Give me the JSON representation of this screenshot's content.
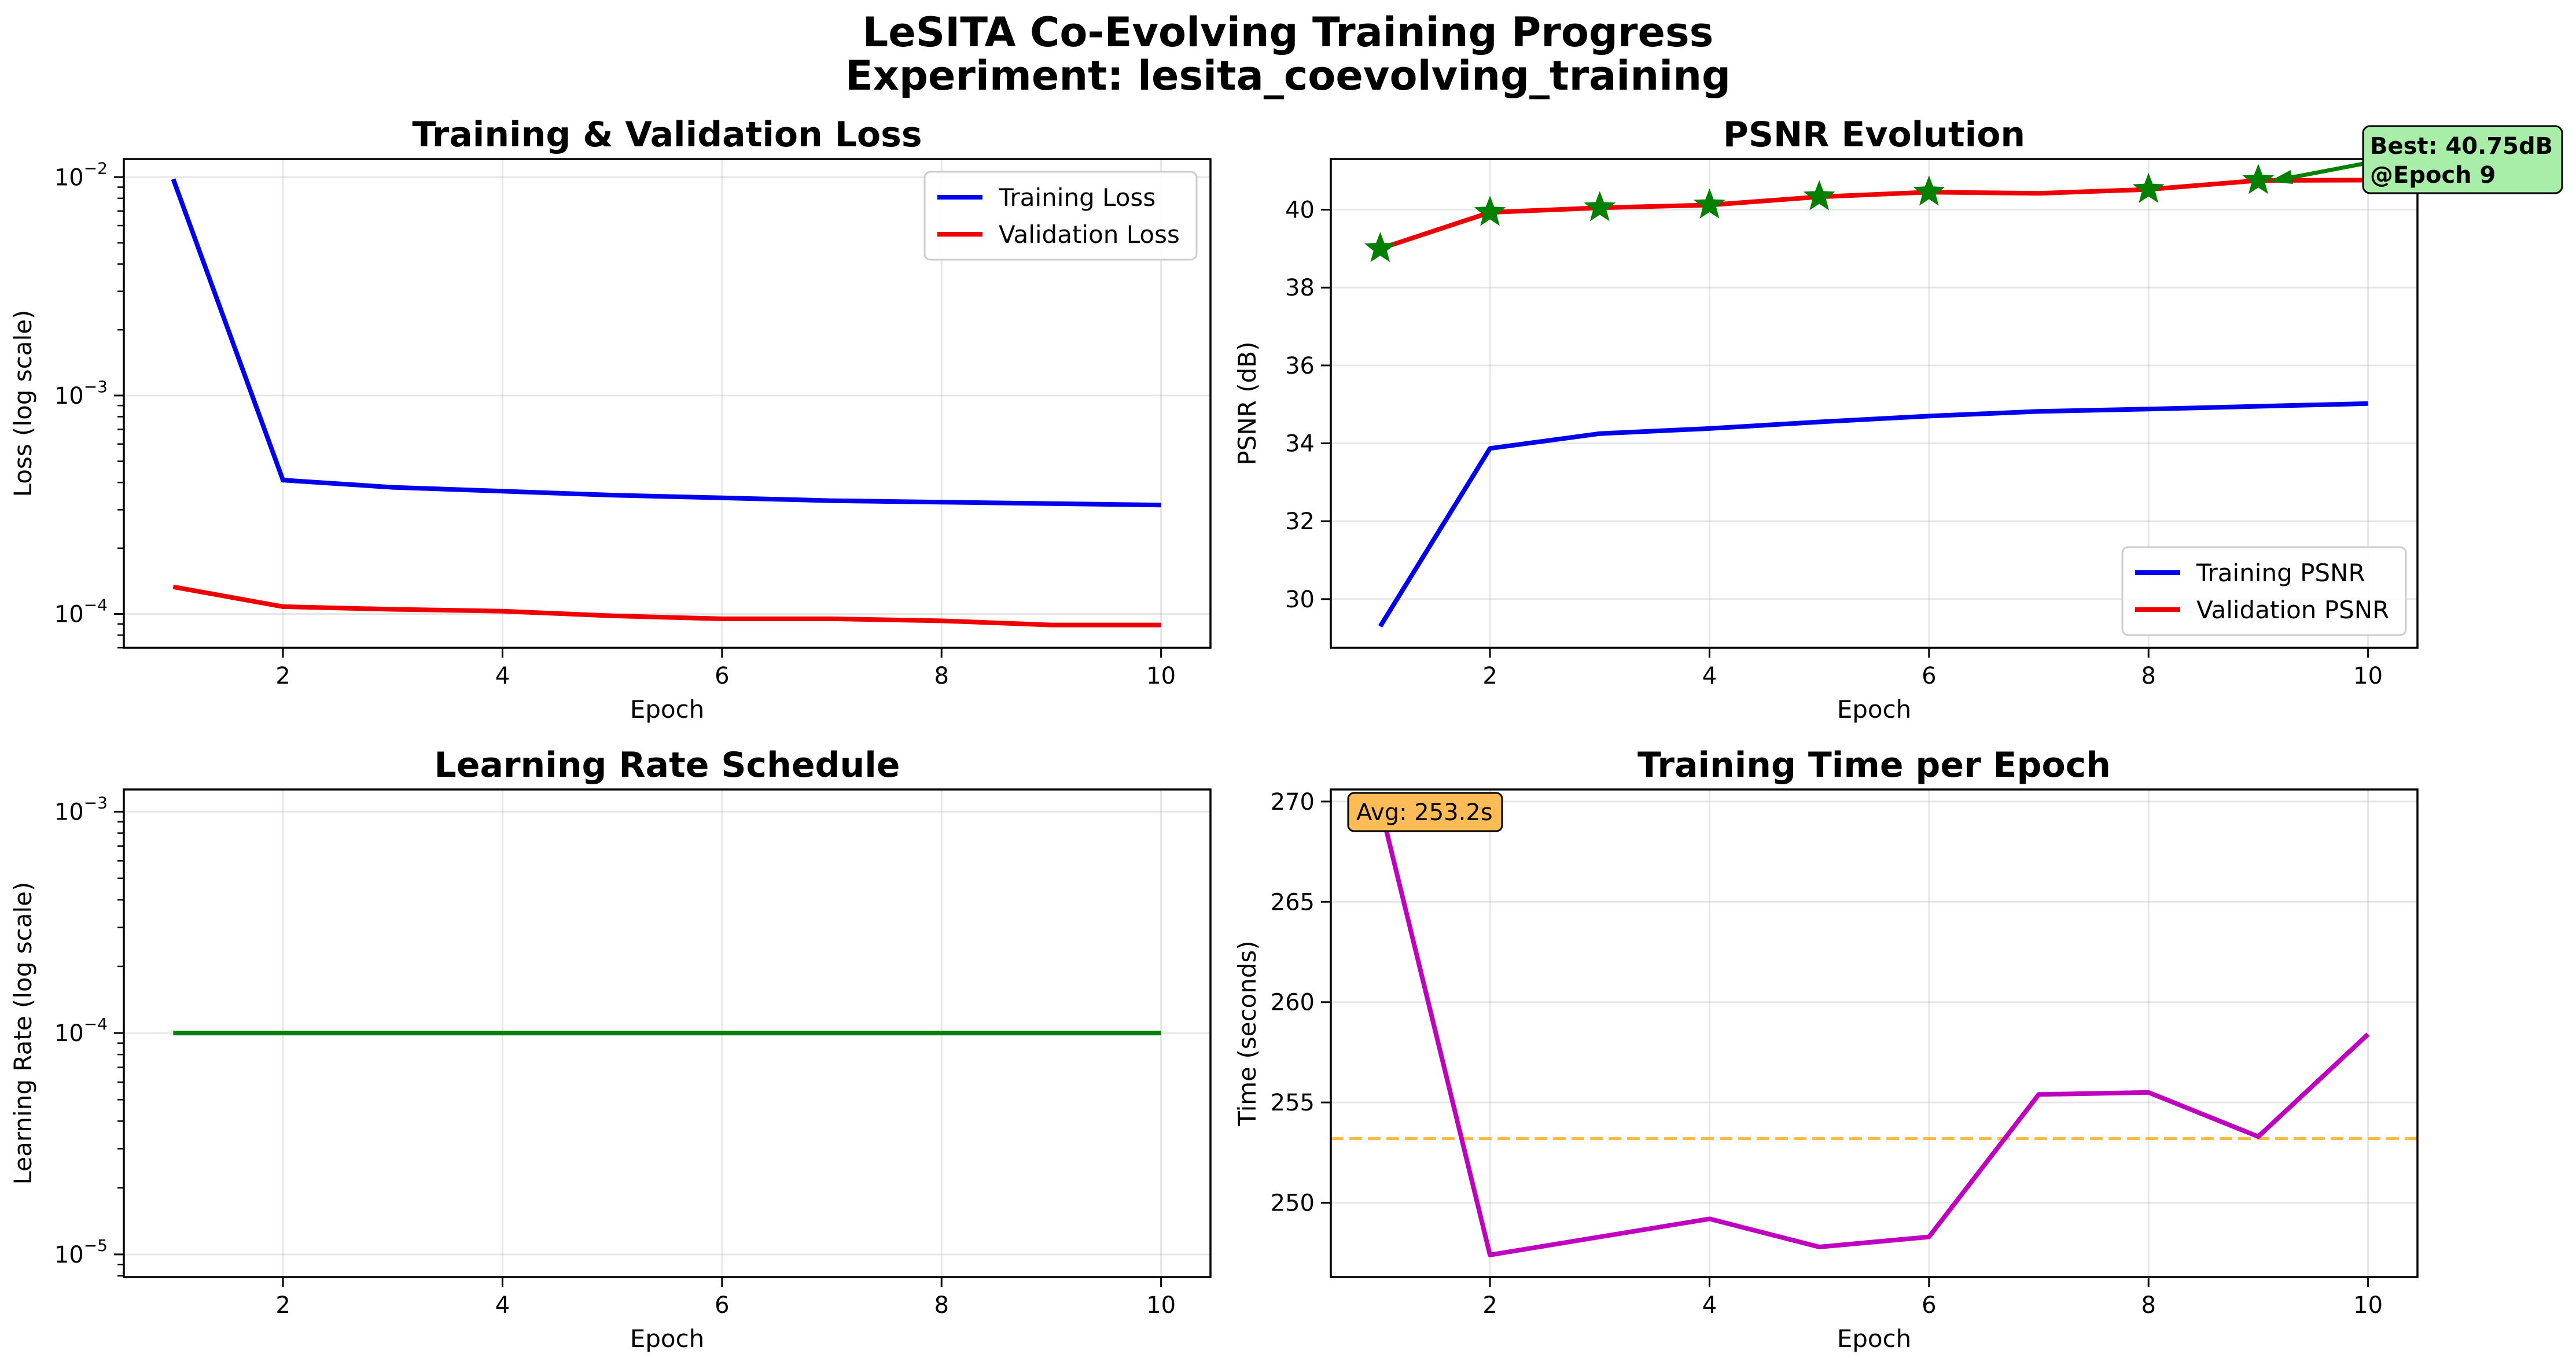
{
  "figure": {
    "title_line1": "LeSITA Co-Evolving Training Progress",
    "title_line2": "Experiment: lesita_coevolving_training"
  },
  "colors": {
    "blue": "#0000ee",
    "red": "#ee0000",
    "green": "#008000",
    "magenta": "#bf00bf",
    "orange": "#ffa500",
    "best_box": "#a8eea8",
    "avg_box": "#ffbb55"
  },
  "chart_data": [
    {
      "id": "loss",
      "type": "line",
      "title": "Training & Validation Loss",
      "xlabel": "Epoch",
      "ylabel": "Loss (log scale)",
      "yscale": "log",
      "xlim": [
        0.55,
        10.45
      ],
      "ylim": [
        7e-05,
        0.0121
      ],
      "grid": true,
      "legend": "top-right",
      "x": [
        1,
        2,
        3,
        4,
        5,
        6,
        7,
        8,
        9,
        10
      ],
      "xticks": [
        2,
        4,
        6,
        8,
        10
      ],
      "yticks": [
        0.0001,
        0.001,
        0.01
      ],
      "ytick_labels": [
        [
          "10",
          "−4"
        ],
        [
          "10",
          "−3"
        ],
        [
          "10",
          "−2"
        ]
      ],
      "series": [
        {
          "name": "Training Loss",
          "color": "blue",
          "values": [
            0.0098,
            0.00041,
            0.00038,
            0.000365,
            0.00035,
            0.00034,
            0.00033,
            0.000325,
            0.00032,
            0.000315
          ]
        },
        {
          "name": "Validation Loss",
          "color": "red",
          "values": [
            0.000133,
            0.000108,
            0.000105,
            0.000103,
            9.8e-05,
            9.5e-05,
            9.5e-05,
            9.3e-05,
            8.9e-05,
            8.9e-05
          ]
        }
      ]
    },
    {
      "id": "psnr",
      "type": "line",
      "title": "PSNR Evolution",
      "xlabel": "Epoch",
      "ylabel": "PSNR (dB)",
      "yscale": "linear",
      "xlim": [
        0.55,
        10.45
      ],
      "ylim": [
        28.75,
        41.3
      ],
      "grid": true,
      "legend": "bottom-right",
      "x": [
        1,
        2,
        3,
        4,
        5,
        6,
        7,
        8,
        9,
        10
      ],
      "xticks": [
        2,
        4,
        6,
        8,
        10
      ],
      "yticks": [
        30,
        32,
        34,
        36,
        38,
        40
      ],
      "series": [
        {
          "name": "Training PSNR",
          "color": "blue",
          "values": [
            29.3,
            33.87,
            34.25,
            34.38,
            34.55,
            34.7,
            34.82,
            34.88,
            34.95,
            35.02
          ]
        },
        {
          "name": "Validation PSNR",
          "color": "red",
          "values": [
            39.0,
            39.93,
            40.05,
            40.12,
            40.33,
            40.45,
            40.42,
            40.52,
            40.75,
            40.76
          ]
        }
      ],
      "best_markers": {
        "x": [
          1,
          2,
          3,
          4,
          5,
          6,
          8,
          9
        ],
        "values": [
          39.0,
          39.93,
          40.05,
          40.12,
          40.33,
          40.45,
          40.52,
          40.75
        ]
      },
      "annotation": {
        "line1": "Best: 40.75dB",
        "line2": "@Epoch 9",
        "point": [
          9,
          40.75
        ]
      }
    },
    {
      "id": "lr",
      "type": "line",
      "title": "Learning Rate Schedule",
      "xlabel": "Epoch",
      "ylabel": "Learning Rate (log scale)",
      "yscale": "log",
      "xlim": [
        0.55,
        10.45
      ],
      "ylim": [
        7.9e-06,
        0.00126
      ],
      "grid": true,
      "x": [
        1,
        2,
        3,
        4,
        5,
        6,
        7,
        8,
        9,
        10
      ],
      "xticks": [
        2,
        4,
        6,
        8,
        10
      ],
      "yticks": [
        1e-05,
        0.0001,
        0.001
      ],
      "ytick_labels": [
        [
          "10",
          "−5"
        ],
        [
          "10",
          "−4"
        ],
        [
          "10",
          "−3"
        ]
      ],
      "series": [
        {
          "color": "green",
          "values": [
            0.0001,
            0.0001,
            0.0001,
            0.0001,
            0.0001,
            0.0001,
            0.0001,
            0.0001,
            0.0001,
            0.0001
          ]
        }
      ]
    },
    {
      "id": "time",
      "type": "line",
      "title": "Training Time per Epoch",
      "xlabel": "Epoch",
      "ylabel": "Time (seconds)",
      "yscale": "linear",
      "xlim": [
        0.55,
        10.45
      ],
      "ylim": [
        246.3,
        270.6
      ],
      "grid": true,
      "x": [
        1,
        2,
        3,
        4,
        5,
        6,
        7,
        8,
        9,
        10
      ],
      "xticks": [
        2,
        4,
        6,
        8,
        10
      ],
      "yticks": [
        250,
        255,
        260,
        265,
        270
      ],
      "series": [
        {
          "color": "magenta",
          "values": [
            269.8,
            247.4,
            248.3,
            249.2,
            247.8,
            248.3,
            255.4,
            255.5,
            253.3,
            258.4
          ]
        }
      ],
      "average_line": {
        "value": 253.2,
        "color": "orange"
      },
      "annotation": {
        "text": "Avg: 253.2s"
      }
    }
  ]
}
